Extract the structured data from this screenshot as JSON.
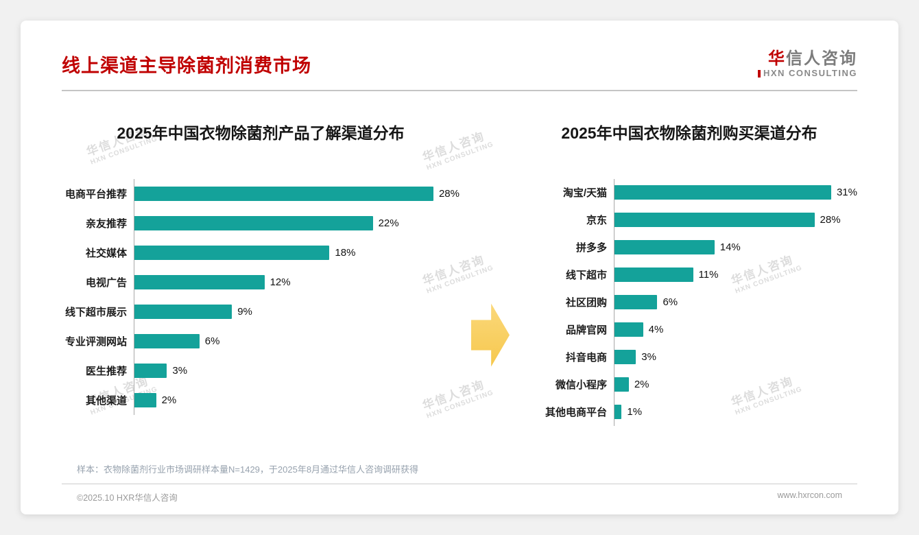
{
  "slide": {
    "title": "线上渠道主导除菌剂消费市场",
    "logo": {
      "cn_first": "华",
      "cn_rest": "信人咨询",
      "en": "HXN CONSULTING"
    },
    "watermark": {
      "line1": "华信人咨询",
      "line2": "HXN CONSULTING"
    },
    "footnote": "样本：衣物除菌剂行业市场调研样本量N=1429，于2025年8月通过华信人咨询调研获得",
    "footer": {
      "left": "©2025.10 HXR华信人咨询",
      "right": "www.hxrcon.com"
    }
  },
  "colors": {
    "bar": "#14a29a",
    "title_red": "#c00000",
    "arrow": "#f8cd5f"
  },
  "chart_data": [
    {
      "type": "bar",
      "orientation": "horizontal",
      "title": "2025年中国衣物除菌剂产品了解渠道分布",
      "categories": [
        "电商平台推荐",
        "亲友推荐",
        "社交媒体",
        "电视广告",
        "线下超市展示",
        "专业评测网站",
        "医生推荐",
        "其他渠道"
      ],
      "values": [
        28,
        22,
        18,
        12,
        9,
        6,
        3,
        2
      ],
      "unit": "%",
      "xlim": [
        0,
        30
      ],
      "grid": false,
      "legend": false
    },
    {
      "type": "bar",
      "orientation": "horizontal",
      "title": "2025年中国衣物除菌剂购买渠道分布",
      "categories": [
        "淘宝/天猫",
        "京东",
        "拼多多",
        "线下超市",
        "社区团购",
        "品牌官网",
        "抖音电商",
        "微信小程序",
        "其他电商平台"
      ],
      "values": [
        31,
        28,
        14,
        11,
        6,
        4,
        3,
        2,
        1
      ],
      "unit": "%",
      "xlim": [
        0,
        34
      ],
      "grid": false,
      "legend": false
    }
  ]
}
